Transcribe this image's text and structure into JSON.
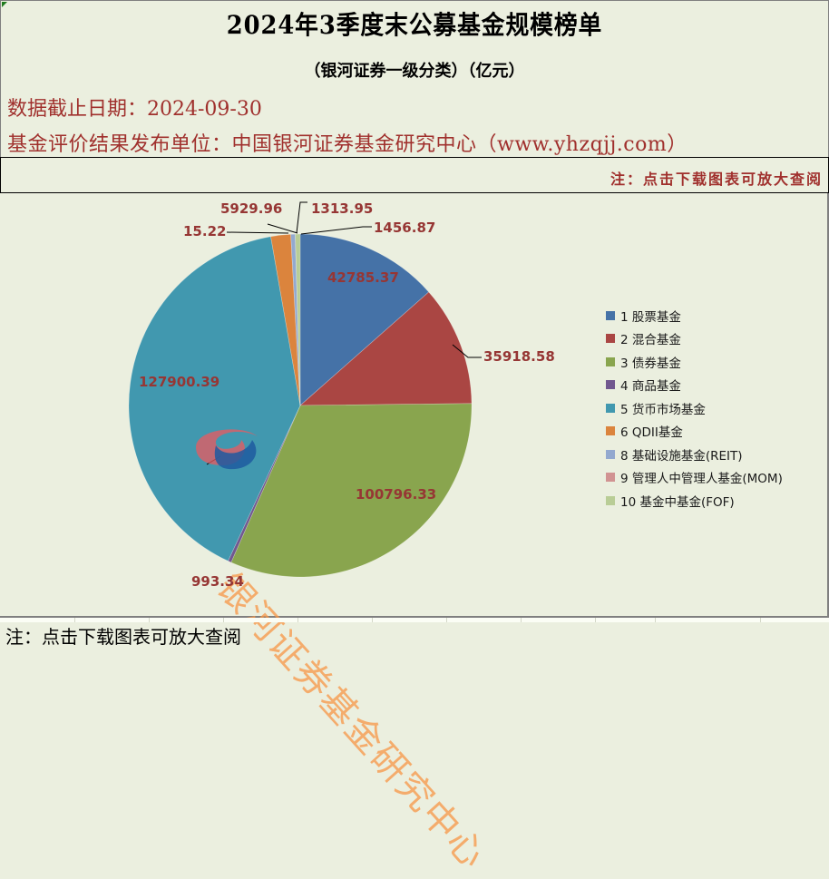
{
  "header": {
    "title": "2024年3季度末公募基金规模榜单",
    "subtitle": "（银河证券一级分类）（亿元）",
    "date_line": "数据截止日期：2024-09-30",
    "publisher_line": "基金评价结果发布单位：中国银河证券基金研究中心（www.yhzqjj.com）",
    "note_right": "注：点击下载图表可放大查阅"
  },
  "footer": {
    "note": "注：点击下载图表可放大查阅"
  },
  "watermark": "银河证券基金研究中心",
  "chart_data": {
    "type": "pie",
    "title": "2024年3季度末公募基金规模榜单",
    "subtitle": "（银河证券一级分类）（亿元）",
    "unit": "亿元",
    "legend_position": "right",
    "categories": [
      "1 股票基金",
      "2 混合基金",
      "3 债券基金",
      "4 商品基金",
      "5 货币市场基金",
      "6 QDII基金",
      "8 基础设施基金(REIT)",
      "9 管理人中管理人基金(MOM)",
      "10 基金中基金(FOF)"
    ],
    "values": [
      42785.37,
      35918.58,
      100796.33,
      993.34,
      127900.39,
      5929.96,
      1313.95,
      15.22,
      1456.87
    ],
    "value_labels": [
      "42785.37",
      "35918.58",
      "100796.33",
      "993.34",
      "127900.39",
      "5929.96",
      "1313.95",
      "15.22",
      "1456.87"
    ],
    "colors": [
      "#4572a7",
      "#aa4643",
      "#89a54e",
      "#71588f",
      "#4198af",
      "#db843d",
      "#93a9cf",
      "#d19392",
      "#b9cd96"
    ],
    "label_color": "#963634"
  }
}
